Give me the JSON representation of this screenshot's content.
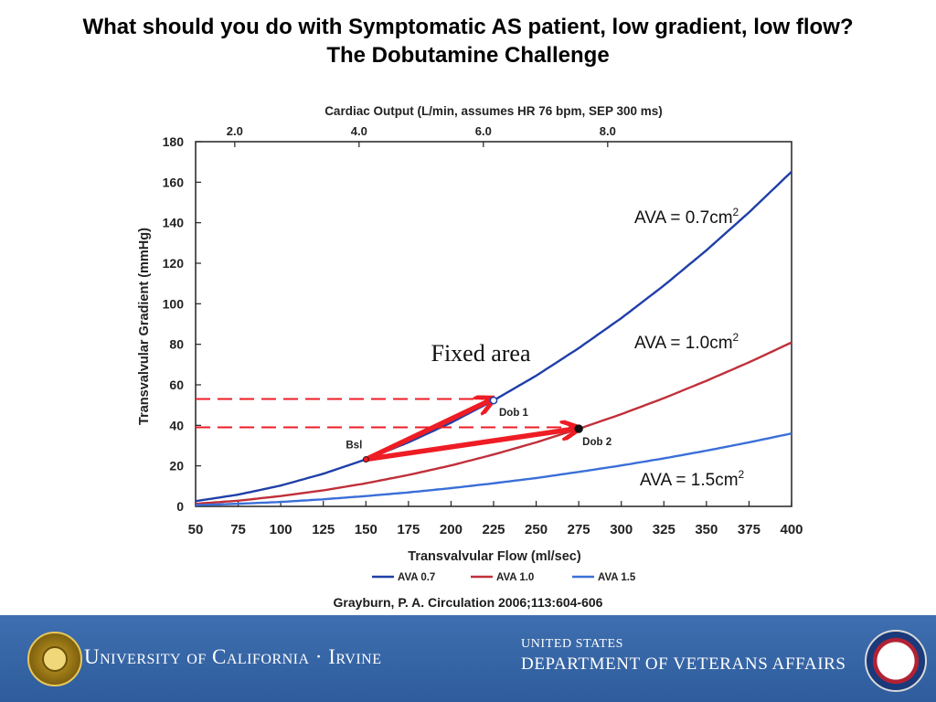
{
  "slide": {
    "title_line1": "What should you do with Symptomatic AS patient, low gradient, low flow?",
    "title_line2": "The Dobutamine Challenge",
    "citation": "Grayburn, P. A. Circulation 2006;113:604-606"
  },
  "footer": {
    "uci_name": "University of California · Irvine",
    "va_line1": "UNITED STATES",
    "va_line2": "DEPARTMENT OF VETERANS AFFAIRS"
  },
  "colors": {
    "ava07": "#1f3fa8",
    "ava10": "#c0303a",
    "ava15": "#3a6fd8",
    "arrow": "#ee1c24",
    "dashed": "#ee1c24",
    "footer": "#3a69aa"
  },
  "chart_data": {
    "type": "line",
    "xlabel": "Transvalvular Flow (ml/sec)",
    "ylabel": "Transvalvular Gradient (mmHg)",
    "top_axis_label": "Cardiac Output (L/min, assumes HR 76 bpm, SEP 300 ms)",
    "xlim": [
      50,
      400
    ],
    "ylim": [
      0,
      180
    ],
    "x_ticks": [
      50,
      75,
      100,
      125,
      150,
      175,
      200,
      225,
      250,
      275,
      300,
      325,
      350,
      375,
      400
    ],
    "y_ticks": [
      0,
      20,
      40,
      60,
      80,
      100,
      120,
      140,
      160,
      180
    ],
    "top_ticks": [
      {
        "label": "2.0",
        "flow": 73
      },
      {
        "label": "4.0",
        "flow": 146
      },
      {
        "label": "6.0",
        "flow": 219
      },
      {
        "label": "8.0",
        "flow": 292
      }
    ],
    "series": [
      {
        "name": "AVA 0.7",
        "annotation": "AVA = 0.7cm",
        "sup": "2",
        "color_key": "ava07",
        "x": [
          50,
          75,
          100,
          125,
          150,
          175,
          200,
          225,
          250,
          275,
          300,
          325,
          350,
          375,
          400
        ],
        "y": [
          2.6,
          5.8,
          10.3,
          16.1,
          23.2,
          31.6,
          41.3,
          52.3,
          64.5,
          78.1,
          92.9,
          109.0,
          126.4,
          145.1,
          165.2
        ]
      },
      {
        "name": "AVA 1.0",
        "annotation": "AVA = 1.0cm",
        "sup": "2",
        "color_key": "ava10",
        "x": [
          50,
          75,
          100,
          125,
          150,
          175,
          200,
          225,
          250,
          275,
          300,
          325,
          350,
          375,
          400
        ],
        "y": [
          1.3,
          2.8,
          5.1,
          7.9,
          11.4,
          15.5,
          20.2,
          25.6,
          31.6,
          38.3,
          45.5,
          53.4,
          62.0,
          71.1,
          80.9
        ]
      },
      {
        "name": "AVA 1.5",
        "annotation": "AVA = 1.5cm",
        "sup": "2",
        "color_key": "ava15",
        "x": [
          50,
          75,
          100,
          125,
          150,
          175,
          200,
          225,
          250,
          275,
          300,
          325,
          350,
          375,
          400
        ],
        "y": [
          0.6,
          1.3,
          2.2,
          3.5,
          5.1,
          6.9,
          9.0,
          11.4,
          14.0,
          17.0,
          20.2,
          23.7,
          27.5,
          31.6,
          36.0
        ]
      }
    ],
    "points": [
      {
        "label": "Bsl",
        "x": 150,
        "y": 23.2,
        "style": "small-red"
      },
      {
        "label": "Dob 1",
        "x": 225,
        "y": 52.3,
        "style": "open"
      },
      {
        "label": "Dob 2",
        "x": 275,
        "y": 38.3,
        "style": "filled"
      }
    ],
    "dashed_lines": [
      {
        "y": 53,
        "x_from": 50,
        "x_to": 225
      },
      {
        "y": 39,
        "x_from": 50,
        "x_to": 275
      }
    ],
    "arrows": [
      {
        "from": [
          150,
          23.2
        ],
        "to": [
          225,
          52.3
        ]
      },
      {
        "from": [
          150,
          23.2
        ],
        "to": [
          275,
          38.3
        ]
      }
    ],
    "annotation_fixed_area": "Fixed area",
    "legend": [
      "AVA 0.7",
      "AVA 1.0",
      "AVA 1.5"
    ]
  }
}
